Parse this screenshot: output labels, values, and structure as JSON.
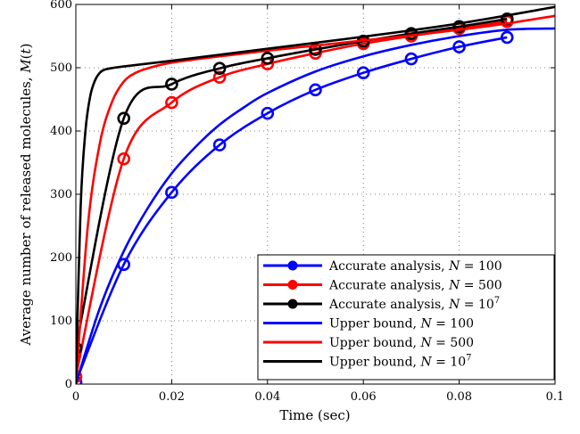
{
  "chart_data": {
    "type": "line",
    "title": "",
    "xlabel": "Time (sec)",
    "ylabel": "Average number of released molecules, M(t)",
    "ylabel_parts": [
      "Average number of released molecules, ",
      "M",
      "(",
      "t",
      ")"
    ],
    "xlim": [
      0,
      0.1
    ],
    "ylim": [
      0,
      600
    ],
    "xticks": [
      0,
      0.02,
      0.04,
      0.06,
      0.08,
      0.1
    ],
    "xtick_labels": [
      "0",
      "0.02",
      "0.04",
      "0.06",
      "0.08",
      "0.1"
    ],
    "yticks": [
      0,
      100,
      200,
      300,
      400,
      500,
      600
    ],
    "ytick_labels": [
      "0",
      "100",
      "200",
      "300",
      "400",
      "500",
      "600"
    ],
    "grid": true,
    "legend_position": "bottom-right",
    "series": [
      {
        "name": "Accurate analysis, N = 100",
        "legend_prefix": "Accurate analysis, ",
        "legend_n": "100",
        "legend_exp": "",
        "style": "line-marker",
        "marker": "circle",
        "color": "#0000ff",
        "x": [
          0,
          0.01,
          0.02,
          0.03,
          0.04,
          0.05,
          0.06,
          0.07,
          0.08,
          0.09
        ],
        "y": [
          3,
          189,
          303,
          378,
          428,
          465,
          492,
          514,
          533,
          548
        ]
      },
      {
        "name": "Accurate analysis, N = 500",
        "legend_prefix": "Accurate analysis, ",
        "legend_n": "500",
        "legend_exp": "",
        "style": "line-marker",
        "marker": "circle",
        "color": "#ff0000",
        "x": [
          0,
          0.01,
          0.02,
          0.03,
          0.04,
          0.05,
          0.06,
          0.07,
          0.08,
          0.09
        ],
        "y": [
          12,
          356,
          445,
          485,
          506,
          523,
          538,
          550,
          562,
          573
        ]
      },
      {
        "name": "Accurate analysis, N = 10^7",
        "legend_prefix": "Accurate analysis, ",
        "legend_n": "10",
        "legend_exp": "7",
        "style": "line-marker",
        "marker": "circle",
        "color": "#000000",
        "x": [
          0,
          0.01,
          0.02,
          0.03,
          0.04,
          0.05,
          0.06,
          0.07,
          0.08,
          0.09
        ],
        "y": [
          57,
          420,
          474,
          499,
          515,
          529,
          542,
          554,
          565,
          577
        ]
      },
      {
        "name": "Upper bound, N = 100",
        "legend_prefix": "Upper bound, ",
        "legend_n": "100",
        "legend_exp": "",
        "style": "line",
        "color": "#0000ff",
        "x": [
          0,
          0.005,
          0.01,
          0.015,
          0.02,
          0.025,
          0.03,
          0.035,
          0.04,
          0.05,
          0.06,
          0.07,
          0.08,
          0.09,
          0.1
        ],
        "y": [
          0,
          120,
          210,
          278,
          333,
          375,
          410,
          437,
          460,
          494,
          518,
          536,
          550,
          560,
          562
        ]
      },
      {
        "name": "Upper bound, N = 500",
        "legend_prefix": "Upper bound, ",
        "legend_n": "500",
        "legend_exp": "",
        "style": "line",
        "color": "#ff0000",
        "x": [
          0,
          0.0025,
          0.005,
          0.0075,
          0.01,
          0.0125,
          0.015,
          0.02,
          0.03,
          0.04,
          0.05,
          0.06,
          0.07,
          0.08,
          0.09,
          0.1
        ],
        "y": [
          0,
          250,
          380,
          445,
          478,
          492,
          499,
          508,
          518,
          527,
          535,
          543,
          551,
          560,
          570,
          582
        ]
      },
      {
        "name": "Upper bound, N = 10^7",
        "legend_prefix": "Upper bound, ",
        "legend_n": "10",
        "legend_exp": "7",
        "style": "line",
        "color": "#000000",
        "x": [
          0,
          0.001,
          0.002,
          0.003,
          0.004,
          0.005,
          0.006,
          0.008,
          0.01,
          0.02,
          0.04,
          0.06,
          0.08,
          0.1
        ],
        "y": [
          0,
          280,
          400,
          455,
          480,
          492,
          497,
          500,
          502,
          511,
          530,
          549,
          570,
          596
        ]
      }
    ]
  }
}
